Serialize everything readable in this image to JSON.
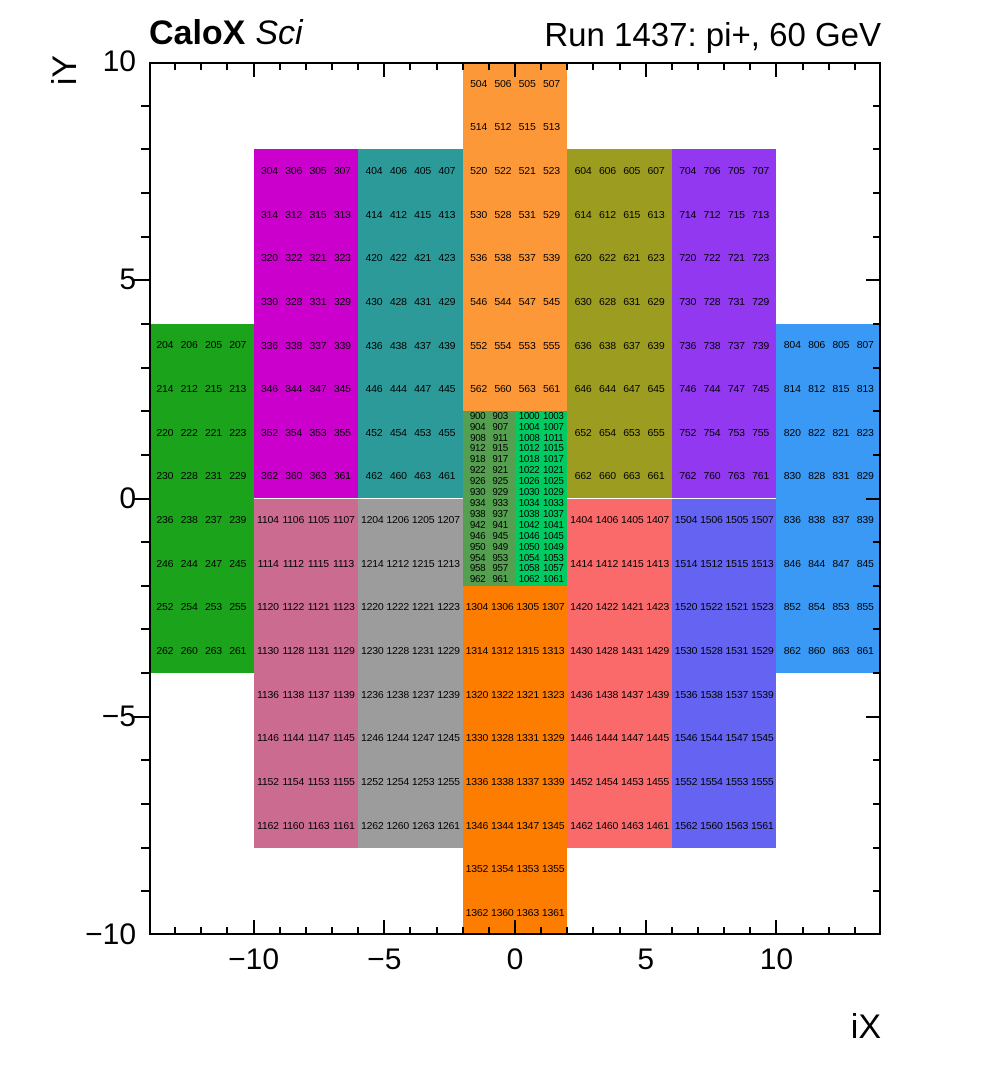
{
  "header": {
    "left_title_bold": "CaloX",
    "left_title_italic": "Sci",
    "right_title": "Run 1437: pi+, 60 GeV"
  },
  "chart_data": {
    "type": "heatmap",
    "title": "Run 1437: pi+, 60 GeV",
    "subtitle_left": "CaloX Sci",
    "xlabel": "iX",
    "ylabel": "iY",
    "xlim": [
      -14,
      14
    ],
    "ylim": [
      -10,
      10
    ],
    "grid": false,
    "x_major_ticks": [
      -10,
      -5,
      0,
      5,
      10
    ],
    "x_tick_labels": [
      "−10",
      "−5",
      "0",
      "5",
      "10"
    ],
    "y_major_ticks": [
      10,
      5,
      0,
      -5,
      -10
    ],
    "y_tick_labels": [
      "10",
      "5",
      "0",
      "−5",
      "−10"
    ],
    "minor_tick_step": 1,
    "blocks": [
      {
        "name": "200",
        "color": "#1ba31b",
        "x": [
          -14,
          -10
        ],
        "y": [
          -4,
          4
        ],
        "dense": false,
        "rows": [
          [
            204,
            206,
            205,
            207
          ],
          [
            214,
            212,
            215,
            213
          ],
          [
            220,
            222,
            221,
            223
          ],
          [
            230,
            228,
            231,
            229
          ],
          [
            236,
            238,
            237,
            239
          ],
          [
            246,
            244,
            247,
            245
          ],
          [
            252,
            254,
            253,
            255
          ],
          [
            262,
            260,
            263,
            261
          ]
        ]
      },
      {
        "name": "300",
        "color": "#cc00cc",
        "x": [
          -10,
          -6
        ],
        "y": [
          0,
          8
        ],
        "dense": false,
        "rows": [
          [
            304,
            306,
            305,
            307
          ],
          [
            314,
            312,
            315,
            313
          ],
          [
            320,
            322,
            321,
            323
          ],
          [
            330,
            328,
            331,
            329
          ],
          [
            336,
            338,
            337,
            339
          ],
          [
            346,
            344,
            347,
            345
          ],
          [
            352,
            354,
            353,
            355
          ],
          [
            362,
            360,
            363,
            361
          ]
        ]
      },
      {
        "name": "400",
        "color": "#2d9a9a",
        "x": [
          -6,
          -2
        ],
        "y": [
          0,
          8
        ],
        "dense": false,
        "rows": [
          [
            404,
            406,
            405,
            407
          ],
          [
            414,
            412,
            415,
            413
          ],
          [
            420,
            422,
            421,
            423
          ],
          [
            430,
            428,
            431,
            429
          ],
          [
            436,
            438,
            437,
            439
          ],
          [
            446,
            444,
            447,
            445
          ],
          [
            452,
            454,
            453,
            455
          ],
          [
            462,
            460,
            463,
            461
          ]
        ]
      },
      {
        "name": "500",
        "color": "#fc9838",
        "x": [
          -2,
          2
        ],
        "y": [
          2,
          10
        ],
        "dense": false,
        "rows": [
          [
            504,
            506,
            505,
            507
          ],
          [
            514,
            512,
            515,
            513
          ],
          [
            520,
            522,
            521,
            523
          ],
          [
            530,
            528,
            531,
            529
          ],
          [
            536,
            538,
            537,
            539
          ],
          [
            546,
            544,
            547,
            545
          ],
          [
            552,
            554,
            553,
            555
          ],
          [
            562,
            560,
            563,
            561
          ]
        ]
      },
      {
        "name": "600",
        "color": "#9c9c20",
        "x": [
          2,
          6
        ],
        "y": [
          0,
          8
        ],
        "dense": false,
        "rows": [
          [
            604,
            606,
            605,
            607
          ],
          [
            614,
            612,
            615,
            613
          ],
          [
            620,
            622,
            621,
            623
          ],
          [
            630,
            628,
            631,
            629
          ],
          [
            636,
            638,
            637,
            639
          ],
          [
            646,
            644,
            647,
            645
          ],
          [
            652,
            654,
            653,
            655
          ],
          [
            662,
            660,
            663,
            661
          ]
        ]
      },
      {
        "name": "700",
        "color": "#9138f0",
        "x": [
          6,
          10
        ],
        "y": [
          0,
          8
        ],
        "dense": false,
        "rows": [
          [
            704,
            706,
            705,
            707
          ],
          [
            714,
            712,
            715,
            713
          ],
          [
            720,
            722,
            721,
            723
          ],
          [
            730,
            728,
            731,
            729
          ],
          [
            736,
            738,
            737,
            739
          ],
          [
            746,
            744,
            747,
            745
          ],
          [
            752,
            754,
            753,
            755
          ],
          [
            762,
            760,
            763,
            761
          ]
        ]
      },
      {
        "name": "800",
        "color": "#3a99f5",
        "x": [
          10,
          14
        ],
        "y": [
          -4,
          4
        ],
        "dense": false,
        "rows": [
          [
            804,
            806,
            805,
            807
          ],
          [
            814,
            812,
            815,
            813
          ],
          [
            820,
            822,
            821,
            823
          ],
          [
            830,
            828,
            831,
            829
          ],
          [
            836,
            838,
            837,
            839
          ],
          [
            846,
            844,
            847,
            845
          ],
          [
            852,
            854,
            853,
            855
          ],
          [
            862,
            860,
            863,
            861
          ]
        ]
      },
      {
        "name": "900",
        "color": "#55a050",
        "x": [
          -2,
          0
        ],
        "y": [
          -2,
          2
        ],
        "dense": true,
        "rows": [
          [
            900,
            903
          ],
          [
            904,
            907
          ],
          [
            908,
            911
          ],
          [
            912,
            915
          ],
          [
            918,
            917
          ],
          [
            922,
            921
          ],
          [
            926,
            925
          ],
          [
            930,
            929
          ],
          [
            934,
            933
          ],
          [
            938,
            937
          ],
          [
            942,
            941
          ],
          [
            946,
            945
          ],
          [
            950,
            949
          ],
          [
            954,
            953
          ],
          [
            958,
            957
          ],
          [
            962,
            961
          ]
        ]
      },
      {
        "name": "1000",
        "color": "#00cb63",
        "x": [
          0,
          2
        ],
        "y": [
          -2,
          2
        ],
        "dense": true,
        "rows": [
          [
            1000,
            1003
          ],
          [
            1004,
            1007
          ],
          [
            1008,
            1011
          ],
          [
            1012,
            1015
          ],
          [
            1018,
            1017
          ],
          [
            1022,
            1021
          ],
          [
            1026,
            1025
          ],
          [
            1030,
            1029
          ],
          [
            1034,
            1033
          ],
          [
            1038,
            1037
          ],
          [
            1042,
            1041
          ],
          [
            1046,
            1045
          ],
          [
            1050,
            1049
          ],
          [
            1054,
            1053
          ],
          [
            1058,
            1057
          ],
          [
            1062,
            1061
          ]
        ]
      },
      {
        "name": "1100",
        "color": "#ca6b8f",
        "x": [
          -10,
          -6
        ],
        "y": [
          -8,
          0
        ],
        "dense": false,
        "rows": [
          [
            1104,
            1106,
            1105,
            1107
          ],
          [
            1114,
            1112,
            1115,
            1113
          ],
          [
            1120,
            1122,
            1121,
            1123
          ],
          [
            1130,
            1128,
            1131,
            1129
          ],
          [
            1136,
            1138,
            1137,
            1139
          ],
          [
            1146,
            1144,
            1147,
            1145
          ],
          [
            1152,
            1154,
            1153,
            1155
          ],
          [
            1162,
            1160,
            1163,
            1161
          ]
        ]
      },
      {
        "name": "1200",
        "color": "#9c9c9c",
        "x": [
          -6,
          -2
        ],
        "y": [
          -8,
          0
        ],
        "dense": false,
        "rows": [
          [
            1204,
            1206,
            1205,
            1207
          ],
          [
            1214,
            1212,
            1215,
            1213
          ],
          [
            1220,
            1222,
            1221,
            1223
          ],
          [
            1230,
            1228,
            1231,
            1229
          ],
          [
            1236,
            1238,
            1237,
            1239
          ],
          [
            1246,
            1244,
            1247,
            1245
          ],
          [
            1252,
            1254,
            1253,
            1255
          ],
          [
            1262,
            1260,
            1263,
            1261
          ]
        ]
      },
      {
        "name": "1300",
        "color": "#fc7d00",
        "x": [
          -2,
          2
        ],
        "y": [
          -10,
          -2
        ],
        "dense": false,
        "rows": [
          [
            1304,
            1306,
            1305,
            1307
          ],
          [
            1314,
            1312,
            1315,
            1313
          ],
          [
            1320,
            1322,
            1321,
            1323
          ],
          [
            1330,
            1328,
            1331,
            1329
          ],
          [
            1336,
            1338,
            1337,
            1339
          ],
          [
            1346,
            1344,
            1347,
            1345
          ],
          [
            1352,
            1354,
            1353,
            1355
          ],
          [
            1362,
            1360,
            1363,
            1361
          ]
        ]
      },
      {
        "name": "1400",
        "color": "#fa6a6a",
        "x": [
          2,
          6
        ],
        "y": [
          -8,
          0
        ],
        "dense": false,
        "rows": [
          [
            1404,
            1406,
            1405,
            1407
          ],
          [
            1414,
            1412,
            1415,
            1413
          ],
          [
            1420,
            1422,
            1421,
            1423
          ],
          [
            1430,
            1428,
            1431,
            1429
          ],
          [
            1436,
            1438,
            1437,
            1439
          ],
          [
            1446,
            1444,
            1447,
            1445
          ],
          [
            1452,
            1454,
            1453,
            1455
          ],
          [
            1462,
            1460,
            1463,
            1461
          ]
        ]
      },
      {
        "name": "1500",
        "color": "#6463f2",
        "x": [
          6,
          10
        ],
        "y": [
          -8,
          0
        ],
        "dense": false,
        "rows": [
          [
            1504,
            1506,
            1505,
            1507
          ],
          [
            1514,
            1512,
            1515,
            1513
          ],
          [
            1520,
            1522,
            1521,
            1523
          ],
          [
            1530,
            1528,
            1531,
            1529
          ],
          [
            1536,
            1538,
            1537,
            1539
          ],
          [
            1546,
            1544,
            1547,
            1545
          ],
          [
            1552,
            1554,
            1553,
            1555
          ],
          [
            1562,
            1560,
            1563,
            1561
          ]
        ]
      }
    ]
  }
}
